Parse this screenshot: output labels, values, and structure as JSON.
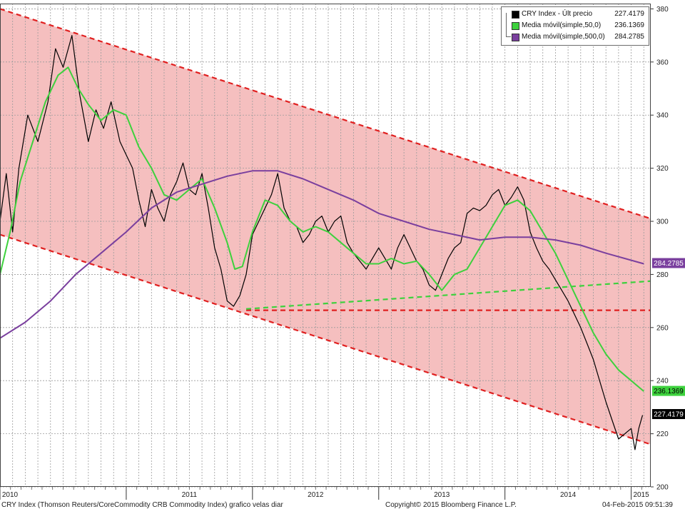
{
  "legend": {
    "items": [
      {
        "name": "CRY Index - Últ precio",
        "value": "227.4179",
        "color": "#000000"
      },
      {
        "name": "Media móvil(simple,50,0)",
        "value": "236.1369",
        "color": "#3dd13d"
      },
      {
        "name": "Media móvil(simple,500,0)",
        "value": "284.2785",
        "color": "#7a3f9e"
      }
    ]
  },
  "footer": {
    "left": "CRY Index (Thomson Reuters/CoreCommodity CRB Commodity Index) grafico velas diar",
    "center": "Copyright© 2015 Bloomberg Finance L.P.",
    "right": "04-Feb-2015 09:51:39"
  },
  "chart_data": {
    "type": "line",
    "ylim": [
      200,
      382
    ],
    "y_ticks": [
      200,
      220,
      240,
      260,
      280,
      300,
      320,
      340,
      360,
      380
    ],
    "x_range": [
      2010.0,
      2015.155
    ],
    "x_labels": [
      "2010",
      "2011",
      "2012",
      "2013",
      "2014",
      "2015"
    ],
    "grid": true,
    "series": [
      {
        "name": "CRY Index - Últ precio",
        "color": "#000000",
        "x": [
          2010.0,
          2010.05,
          2010.1,
          2010.15,
          2010.22,
          2010.3,
          2010.38,
          2010.44,
          2010.5,
          2010.57,
          2010.63,
          2010.7,
          2010.76,
          2010.82,
          2010.88,
          2010.95,
          2011.0,
          2011.05,
          2011.1,
          2011.15,
          2011.2,
          2011.25,
          2011.3,
          2011.35,
          2011.4,
          2011.45,
          2011.5,
          2011.55,
          2011.6,
          2011.65,
          2011.7,
          2011.75,
          2011.8,
          2011.85,
          2011.9,
          2011.95,
          2012.0,
          2012.05,
          2012.1,
          2012.15,
          2012.2,
          2012.25,
          2012.3,
          2012.35,
          2012.4,
          2012.45,
          2012.5,
          2012.55,
          2012.6,
          2012.65,
          2012.7,
          2012.75,
          2012.8,
          2012.85,
          2012.9,
          2012.95,
          2013.0,
          2013.05,
          2013.1,
          2013.15,
          2013.2,
          2013.25,
          2013.3,
          2013.35,
          2013.4,
          2013.45,
          2013.5,
          2013.55,
          2013.6,
          2013.65,
          2013.7,
          2013.75,
          2013.8,
          2013.85,
          2013.9,
          2013.95,
          2014.0,
          2014.05,
          2014.1,
          2014.15,
          2014.2,
          2014.25,
          2014.3,
          2014.35,
          2014.4,
          2014.45,
          2014.5,
          2014.55,
          2014.6,
          2014.65,
          2014.7,
          2014.75,
          2014.8,
          2014.85,
          2014.9,
          2014.95,
          2015.0,
          2015.03,
          2015.06,
          2015.09
        ],
        "values": [
          300,
          318,
          296,
          320,
          340,
          330,
          345,
          365,
          358,
          370,
          348,
          330,
          342,
          335,
          345,
          330,
          325,
          320,
          308,
          298,
          312,
          305,
          300,
          310,
          315,
          322,
          312,
          310,
          318,
          305,
          290,
          282,
          270,
          268,
          272,
          280,
          295,
          300,
          305,
          310,
          318,
          305,
          300,
          298,
          292,
          295,
          300,
          302,
          296,
          300,
          302,
          292,
          288,
          285,
          282,
          286,
          290,
          286,
          282,
          290,
          295,
          290,
          285,
          282,
          276,
          274,
          280,
          286,
          290,
          292,
          303,
          305,
          304,
          306,
          310,
          312,
          306,
          309,
          313,
          308,
          296,
          290,
          285,
          282,
          278,
          274,
          270,
          265,
          260,
          254,
          248,
          240,
          232,
          225,
          218,
          220,
          222,
          214,
          222,
          227
        ]
      },
      {
        "name": "Media móvil(simple,50,0)",
        "color": "#3dd13d",
        "x": [
          2010.0,
          2010.08,
          2010.16,
          2010.26,
          2010.36,
          2010.46,
          2010.54,
          2010.62,
          2010.7,
          2010.8,
          2010.9,
          2011.0,
          2011.1,
          2011.2,
          2011.3,
          2011.4,
          2011.5,
          2011.6,
          2011.7,
          2011.8,
          2011.86,
          2011.92,
          2012.0,
          2012.1,
          2012.2,
          2012.3,
          2012.4,
          2012.5,
          2012.6,
          2012.7,
          2012.8,
          2012.9,
          2013.0,
          2013.1,
          2013.2,
          2013.3,
          2013.4,
          2013.5,
          2013.6,
          2013.7,
          2013.8,
          2013.9,
          2014.0,
          2014.1,
          2014.2,
          2014.3,
          2014.4,
          2014.5,
          2014.6,
          2014.7,
          2014.8,
          2014.9,
          2015.0,
          2015.1
        ],
        "values": [
          280,
          296,
          315,
          330,
          345,
          355,
          358,
          350,
          344,
          338,
          342,
          340,
          328,
          320,
          310,
          308,
          312,
          316,
          305,
          292,
          282,
          283,
          296,
          308,
          306,
          300,
          296,
          298,
          296,
          292,
          288,
          284,
          284,
          286,
          284,
          285,
          280,
          274,
          280,
          282,
          290,
          298,
          306,
          308,
          304,
          296,
          288,
          278,
          268,
          258,
          250,
          244,
          240,
          236
        ]
      },
      {
        "name": "Media móvil(simple,500,0)",
        "color": "#7a3f9e",
        "x": [
          2010.0,
          2010.2,
          2010.4,
          2010.6,
          2010.8,
          2011.0,
          2011.2,
          2011.4,
          2011.6,
          2011.8,
          2012.0,
          2012.2,
          2012.4,
          2012.6,
          2012.8,
          2013.0,
          2013.2,
          2013.4,
          2013.6,
          2013.8,
          2014.0,
          2014.2,
          2014.4,
          2014.6,
          2014.8,
          2015.1
        ],
        "values": [
          256,
          262,
          270,
          280,
          288,
          296,
          305,
          311,
          314,
          317,
          319,
          319,
          316,
          312,
          308,
          303,
          300,
          297,
          295,
          293,
          294,
          294,
          293,
          291,
          288,
          284
        ]
      }
    ],
    "price_tags": [
      {
        "value": 284.2785,
        "label": "284.2785",
        "bg": "#7a3f9e",
        "fg": "#ffffff"
      },
      {
        "value": 236.1369,
        "label": "236.1369",
        "bg": "#3dd13d",
        "fg": "#000000"
      },
      {
        "value": 227.4179,
        "label": "227.4179",
        "bg": "#000000",
        "fg": "#ffffff"
      }
    ]
  }
}
